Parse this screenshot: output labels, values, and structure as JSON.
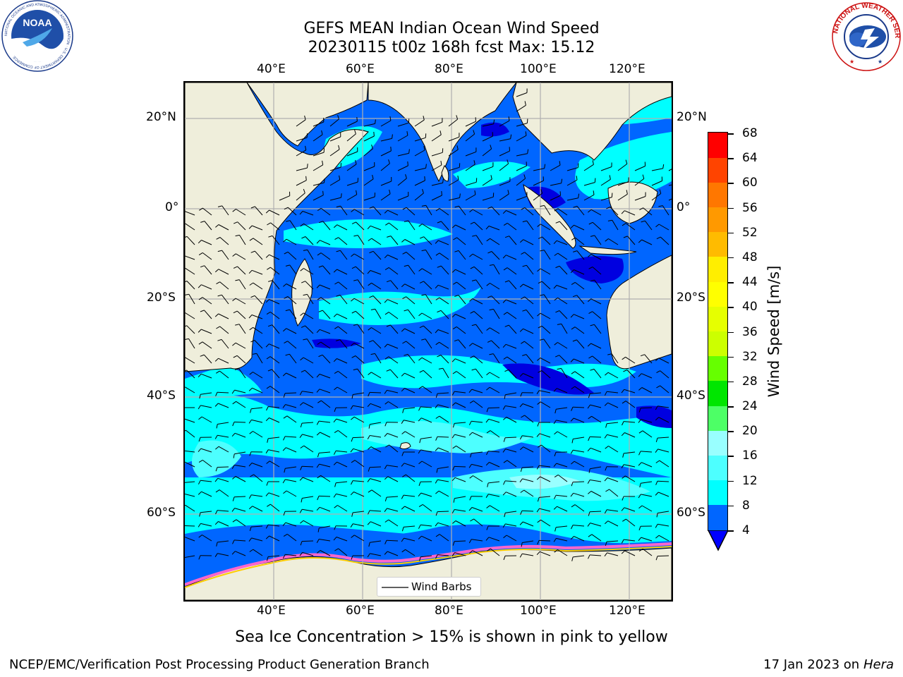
{
  "header": {
    "title_line1": "GEFS MEAN Indian Ocean Wind Speed",
    "title_line2": "20230115 t00z 168h fcst   Max: 15.12"
  },
  "logos": {
    "noaa_text": "NOAA",
    "noaa_ring": "NATIONAL OCEANIC AND ATMOSPHERIC ADMINISTRATION · U.S. DEPARTMENT OF COMMERCE",
    "nws_ring": "NATIONAL WEATHER SERVICE"
  },
  "map": {
    "lon_ticks": [
      "40°E",
      "60°E",
      "80°E",
      "100°E",
      "120°E"
    ],
    "lat_ticks": [
      "20°N",
      "0°",
      "20°S",
      "40°S",
      "60°S"
    ],
    "legend_label": "Wind Barbs",
    "colors": {
      "land": "#efeedb",
      "ocean_dark": "#0000e0",
      "ocean_mid": "#0066ff",
      "ocean_light": "#00ffff",
      "ocean_pale": "#4dffff",
      "grid": "#b0b0b0",
      "sea_ice": [
        "#ff66cc",
        "#ffcc00",
        "#ffff66"
      ]
    }
  },
  "colorbar": {
    "label": "Wind Speed [m/s]",
    "ticks": [
      "68",
      "64",
      "60",
      "56",
      "52",
      "48",
      "44",
      "40",
      "36",
      "32",
      "28",
      "24",
      "20",
      "16",
      "12",
      "8",
      "4"
    ],
    "bins": [
      {
        "lo": 4,
        "hi": 8,
        "color": "#0066ff"
      },
      {
        "lo": 8,
        "hi": 12,
        "color": "#00ffff"
      },
      {
        "lo": 12,
        "hi": 16,
        "color": "#4dffff"
      },
      {
        "lo": 16,
        "hi": 20,
        "color": "#99ffff"
      },
      {
        "lo": 20,
        "hi": 24,
        "color": "#4dff66"
      },
      {
        "lo": 24,
        "hi": 28,
        "color": "#00e600"
      },
      {
        "lo": 28,
        "hi": 32,
        "color": "#66ff00"
      },
      {
        "lo": 32,
        "hi": 36,
        "color": "#ccff00"
      },
      {
        "lo": 36,
        "hi": 40,
        "color": "#e6ff00"
      },
      {
        "lo": 40,
        "hi": 44,
        "color": "#ffff00"
      },
      {
        "lo": 44,
        "hi": 48,
        "color": "#ffee00"
      },
      {
        "lo": 48,
        "hi": 52,
        "color": "#ffbb00"
      },
      {
        "lo": 52,
        "hi": 56,
        "color": "#ff9900"
      },
      {
        "lo": 56,
        "hi": 60,
        "color": "#ff7700"
      },
      {
        "lo": 60,
        "hi": 64,
        "color": "#ff4400"
      },
      {
        "lo": 64,
        "hi": 68,
        "color": "#ff0000"
      }
    ],
    "under_color": "#0000ff"
  },
  "caption": "Sea Ice Concentration > 15% is shown in pink to yellow",
  "footer": {
    "left": "NCEP/EMC/Verification Post Processing Product Generation Branch",
    "right_prefix": "17 Jan 2023 on ",
    "right_host": "Hera"
  }
}
